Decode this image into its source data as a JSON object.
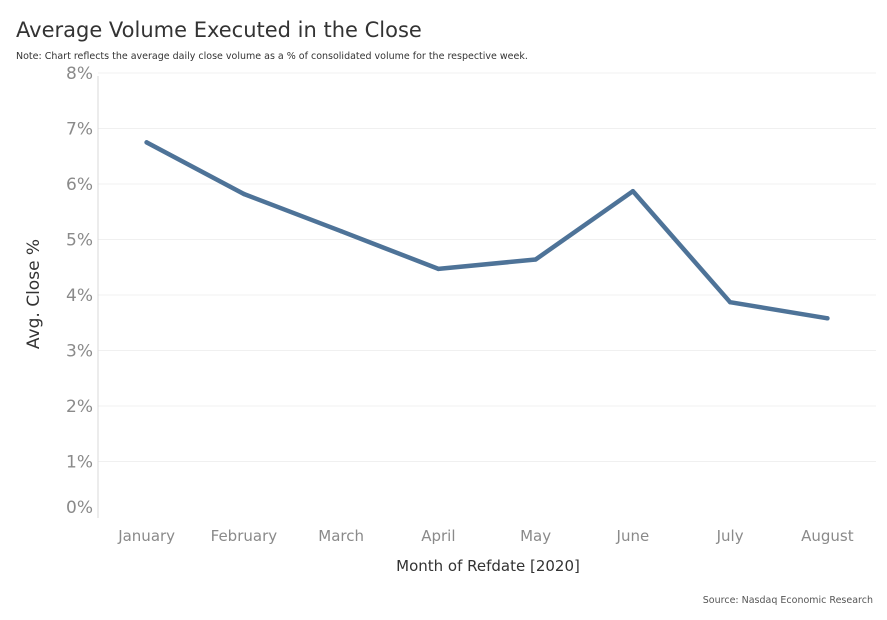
{
  "chart_data": {
    "type": "line",
    "title": "Average Volume Executed in the Close",
    "subtitle": "Note: Chart reflects the average daily close volume as a % of consolidated volume for the respective week.",
    "xlabel": "Month of Refdate [2020]",
    "ylabel": "Avg. Close %",
    "categories": [
      "January",
      "February",
      "March",
      "April",
      "May",
      "June",
      "July",
      "August"
    ],
    "series": [
      {
        "values": [
          6.75,
          5.82,
          5.15,
          4.47,
          4.64,
          5.87,
          3.87,
          3.58
        ]
      }
    ],
    "ylim": [
      0,
      8
    ],
    "yticks": [
      "0%",
      "1%",
      "2%",
      "3%",
      "4%",
      "5%",
      "6%",
      "7%",
      "8%"
    ],
    "grid": true,
    "line_color": "#4e7398"
  },
  "source": "Source: Nasdaq Economic Research"
}
